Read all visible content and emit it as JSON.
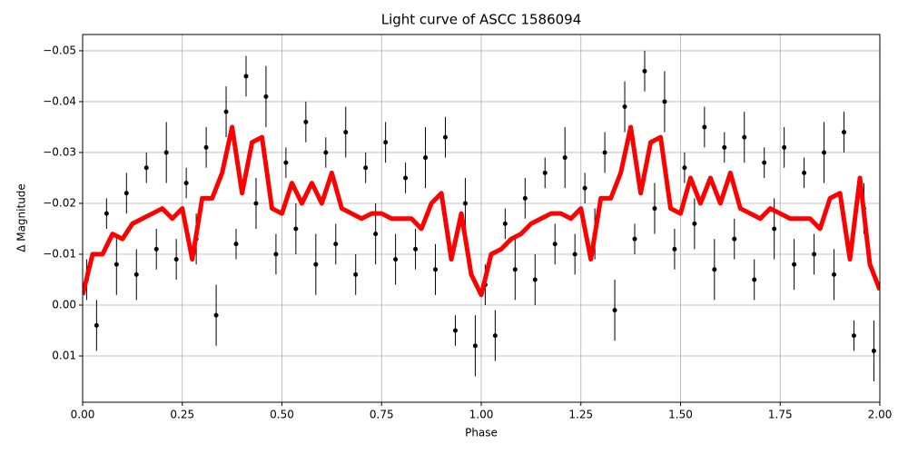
{
  "chart_data": {
    "type": "line",
    "title": "Light curve of ASCC 1586094",
    "x_label": "Phase",
    "y_label": "Δ Magnitude",
    "xlim": [
      0,
      2
    ],
    "ylim": [
      -0.0532,
      0.0191
    ],
    "y_inverted": true,
    "grid": true,
    "xticks": [
      {
        "value": 0,
        "label": "0.00"
      },
      {
        "value": 0.25,
        "label": "0.25"
      },
      {
        "value": 0.5,
        "label": "0.50"
      },
      {
        "value": 0.75,
        "label": "0.75"
      },
      {
        "value": 1,
        "label": "1.00"
      },
      {
        "value": 1.25,
        "label": "1.25"
      },
      {
        "value": 1.5,
        "label": "1.50"
      },
      {
        "value": 1.75,
        "label": "1.75"
      },
      {
        "value": 2,
        "label": "2.00"
      }
    ],
    "yticks": [
      {
        "value": -0.05,
        "label": "−0.05"
      },
      {
        "value": -0.04,
        "label": "−0.04"
      },
      {
        "value": -0.03,
        "label": "−0.03"
      },
      {
        "value": -0.02,
        "label": "−0.02"
      },
      {
        "value": -0.01,
        "label": "−0.01"
      },
      {
        "value": 0,
        "label": "0.00"
      },
      {
        "value": 0.01,
        "label": "0.01"
      }
    ],
    "series": [
      {
        "type": "scatter",
        "color": "#000000",
        "x": [
          0.01,
          0.035,
          0.06,
          0.085,
          0.11,
          0.135,
          0.16,
          0.185,
          0.21,
          0.235,
          0.26,
          0.285,
          0.31,
          0.335,
          0.36,
          0.385,
          0.41,
          0.435,
          0.46,
          0.485,
          0.51,
          0.535,
          0.56,
          0.585,
          0.61,
          0.635,
          0.66,
          0.685,
          0.71,
          0.735,
          0.76,
          0.785,
          0.81,
          0.835,
          0.86,
          0.885,
          0.91,
          0.935,
          0.96,
          0.985,
          1.01,
          1.035,
          1.06,
          1.085,
          1.11,
          1.135,
          1.16,
          1.185,
          1.21,
          1.235,
          1.26,
          1.285,
          1.31,
          1.335,
          1.36,
          1.385,
          1.41,
          1.435,
          1.46,
          1.485,
          1.51,
          1.535,
          1.56,
          1.585,
          1.61,
          1.635,
          1.66,
          1.685,
          1.71,
          1.735,
          1.76,
          1.785,
          1.81,
          1.835,
          1.86,
          1.885,
          1.91,
          1.935,
          1.96,
          1.985
        ],
        "values": [
          -0.005,
          0.004,
          -0.018,
          -0.008,
          -0.022,
          -0.006,
          -0.027,
          -0.011,
          -0.03,
          -0.009,
          -0.024,
          -0.013,
          -0.031,
          0.002,
          -0.038,
          -0.012,
          -0.045,
          -0.02,
          -0.041,
          -0.01,
          -0.028,
          -0.015,
          -0.036,
          -0.008,
          -0.03,
          -0.012,
          -0.034,
          -0.006,
          -0.027,
          -0.014,
          -0.032,
          -0.009,
          -0.025,
          -0.011,
          -0.029,
          -0.007,
          -0.033,
          0.005,
          -0.02,
          0.008,
          -0.004,
          0.006,
          -0.016,
          -0.007,
          -0.021,
          -0.005,
          -0.026,
          -0.012,
          -0.029,
          -0.01,
          -0.023,
          -0.014,
          -0.03,
          0.001,
          -0.039,
          -0.013,
          -0.046,
          -0.019,
          -0.04,
          -0.011,
          -0.027,
          -0.016,
          -0.035,
          -0.007,
          -0.031,
          -0.013,
          -0.033,
          -0.005,
          -0.028,
          -0.015,
          -0.031,
          -0.008,
          -0.026,
          -0.01,
          -0.03,
          -0.006,
          -0.034,
          0.006,
          -0.019,
          0.009
        ],
        "errors": [
          0.004,
          0.005,
          0.003,
          0.006,
          0.004,
          0.005,
          0.003,
          0.004,
          0.006,
          0.004,
          0.003,
          0.005,
          0.004,
          0.006,
          0.005,
          0.003,
          0.004,
          0.005,
          0.006,
          0.004,
          0.003,
          0.005,
          0.004,
          0.006,
          0.003,
          0.004,
          0.005,
          0.004,
          0.003,
          0.006,
          0.004,
          0.005,
          0.003,
          0.004,
          0.006,
          0.005,
          0.004,
          0.003,
          0.005,
          0.006,
          0.004,
          0.005,
          0.003,
          0.006,
          0.004,
          0.005,
          0.003,
          0.004,
          0.006,
          0.004,
          0.003,
          0.005,
          0.004,
          0.006,
          0.005,
          0.003,
          0.004,
          0.005,
          0.006,
          0.004,
          0.003,
          0.005,
          0.004,
          0.006,
          0.003,
          0.004,
          0.005,
          0.004,
          0.003,
          0.006,
          0.004,
          0.005,
          0.003,
          0.004,
          0.006,
          0.005,
          0.004,
          0.003,
          0.005,
          0.006
        ]
      },
      {
        "type": "line",
        "color": "#ff0000",
        "x": [
          0,
          0.025,
          0.05,
          0.075,
          0.1,
          0.125,
          0.15,
          0.175,
          0.2,
          0.225,
          0.25,
          0.275,
          0.3,
          0.325,
          0.35,
          0.375,
          0.4,
          0.425,
          0.45,
          0.475,
          0.5,
          0.525,
          0.55,
          0.575,
          0.6,
          0.625,
          0.65,
          0.675,
          0.7,
          0.725,
          0.75,
          0.775,
          0.8,
          0.825,
          0.85,
          0.875,
          0.9,
          0.925,
          0.95,
          0.975,
          1,
          1.025,
          1.05,
          1.075,
          1.1,
          1.125,
          1.15,
          1.175,
          1.2,
          1.225,
          1.25,
          1.275,
          1.3,
          1.325,
          1.35,
          1.375,
          1.4,
          1.425,
          1.45,
          1.475,
          1.5,
          1.525,
          1.55,
          1.575,
          1.6,
          1.625,
          1.65,
          1.675,
          1.7,
          1.725,
          1.75,
          1.775,
          1.8,
          1.825,
          1.85,
          1.875,
          1.9,
          1.925,
          1.95,
          1.975,
          2
        ],
        "values": [
          -0.002,
          -0.01,
          -0.01,
          -0.014,
          -0.013,
          -0.016,
          -0.017,
          -0.018,
          -0.019,
          -0.017,
          -0.019,
          -0.009,
          -0.021,
          -0.021,
          -0.026,
          -0.035,
          -0.022,
          -0.032,
          -0.033,
          -0.019,
          -0.018,
          -0.024,
          -0.02,
          -0.024,
          -0.02,
          -0.026,
          -0.019,
          -0.018,
          -0.017,
          -0.018,
          -0.018,
          -0.017,
          -0.017,
          -0.017,
          -0.015,
          -0.02,
          -0.022,
          -0.009,
          -0.018,
          -0.006,
          -0.002,
          -0.01,
          -0.011,
          -0.013,
          -0.014,
          -0.016,
          -0.017,
          -0.018,
          -0.018,
          -0.017,
          -0.019,
          -0.009,
          -0.021,
          -0.021,
          -0.026,
          -0.035,
          -0.022,
          -0.032,
          -0.033,
          -0.019,
          -0.018,
          -0.025,
          -0.02,
          -0.025,
          -0.02,
          -0.026,
          -0.019,
          -0.018,
          -0.017,
          -0.019,
          -0.018,
          -0.017,
          -0.017,
          -0.017,
          -0.015,
          -0.021,
          -0.022,
          -0.009,
          -0.025,
          -0.008,
          -0.003
        ]
      }
    ]
  }
}
